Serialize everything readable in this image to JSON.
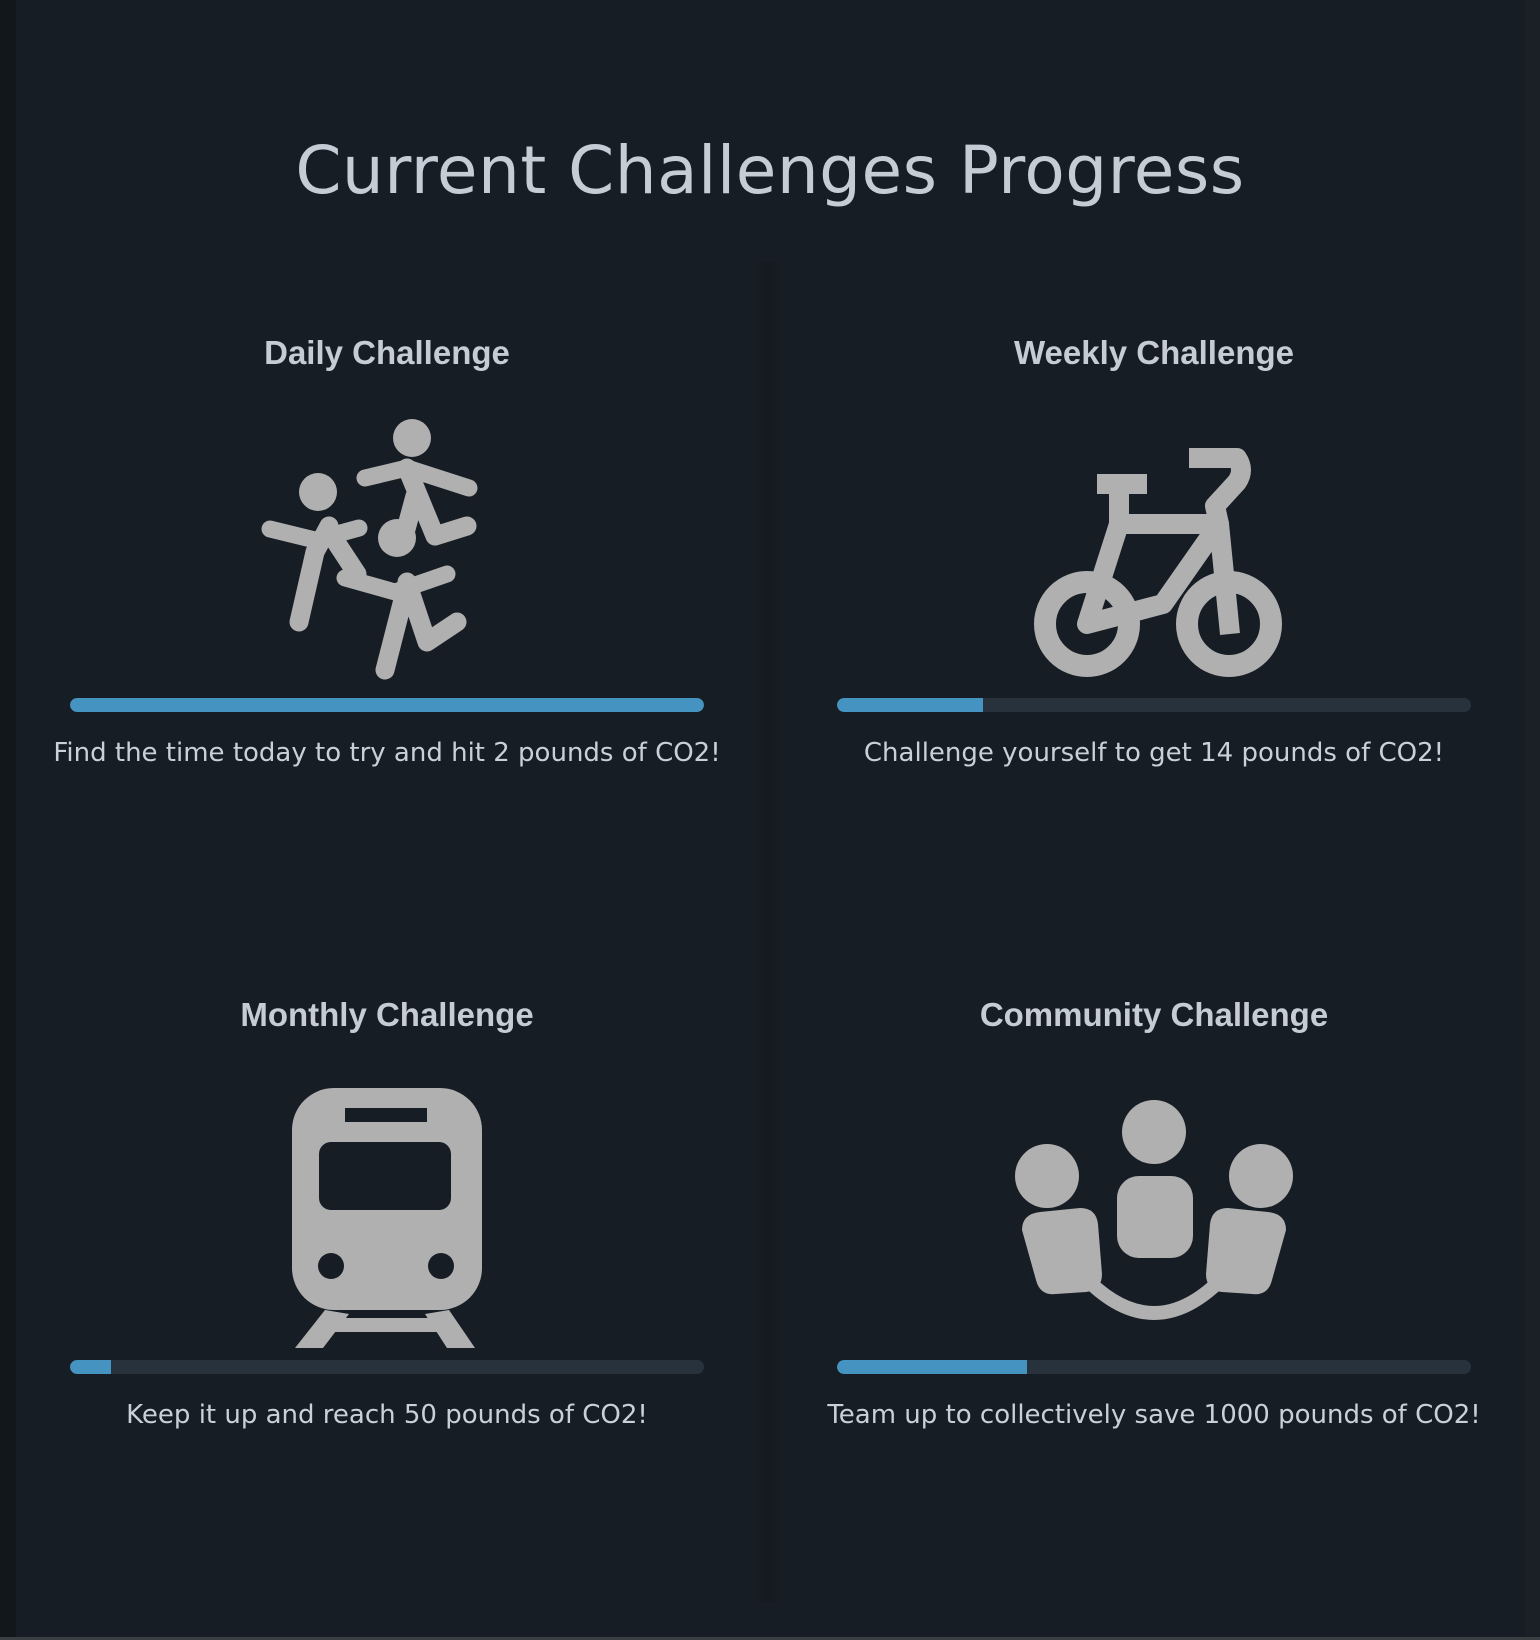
{
  "page": {
    "title": "Current Challenges Progress"
  },
  "colors": {
    "background": "#171d24",
    "progress_fill": "#4593c0",
    "progress_track": "#28323c",
    "icon": "#b0b0b0",
    "text": "#c9d0d8"
  },
  "challenges": [
    {
      "title": "Daily Challenge",
      "icon": "running-people-icon",
      "progress": 1.0,
      "description": "Find the time today to try and hit 2 pounds of CO2!"
    },
    {
      "title": "Weekly Challenge",
      "icon": "bicycle-icon",
      "progress": 0.23,
      "description": "Challenge yourself to get 14 pounds of CO2!"
    },
    {
      "title": "Monthly Challenge",
      "icon": "train-icon",
      "progress": 0.065,
      "description": "Keep it up and reach 50 pounds of CO2!"
    },
    {
      "title": "Community Challenge",
      "icon": "community-group-icon",
      "progress": 0.3,
      "description": "Team up to collectively save 1000 pounds of CO2!"
    }
  ]
}
